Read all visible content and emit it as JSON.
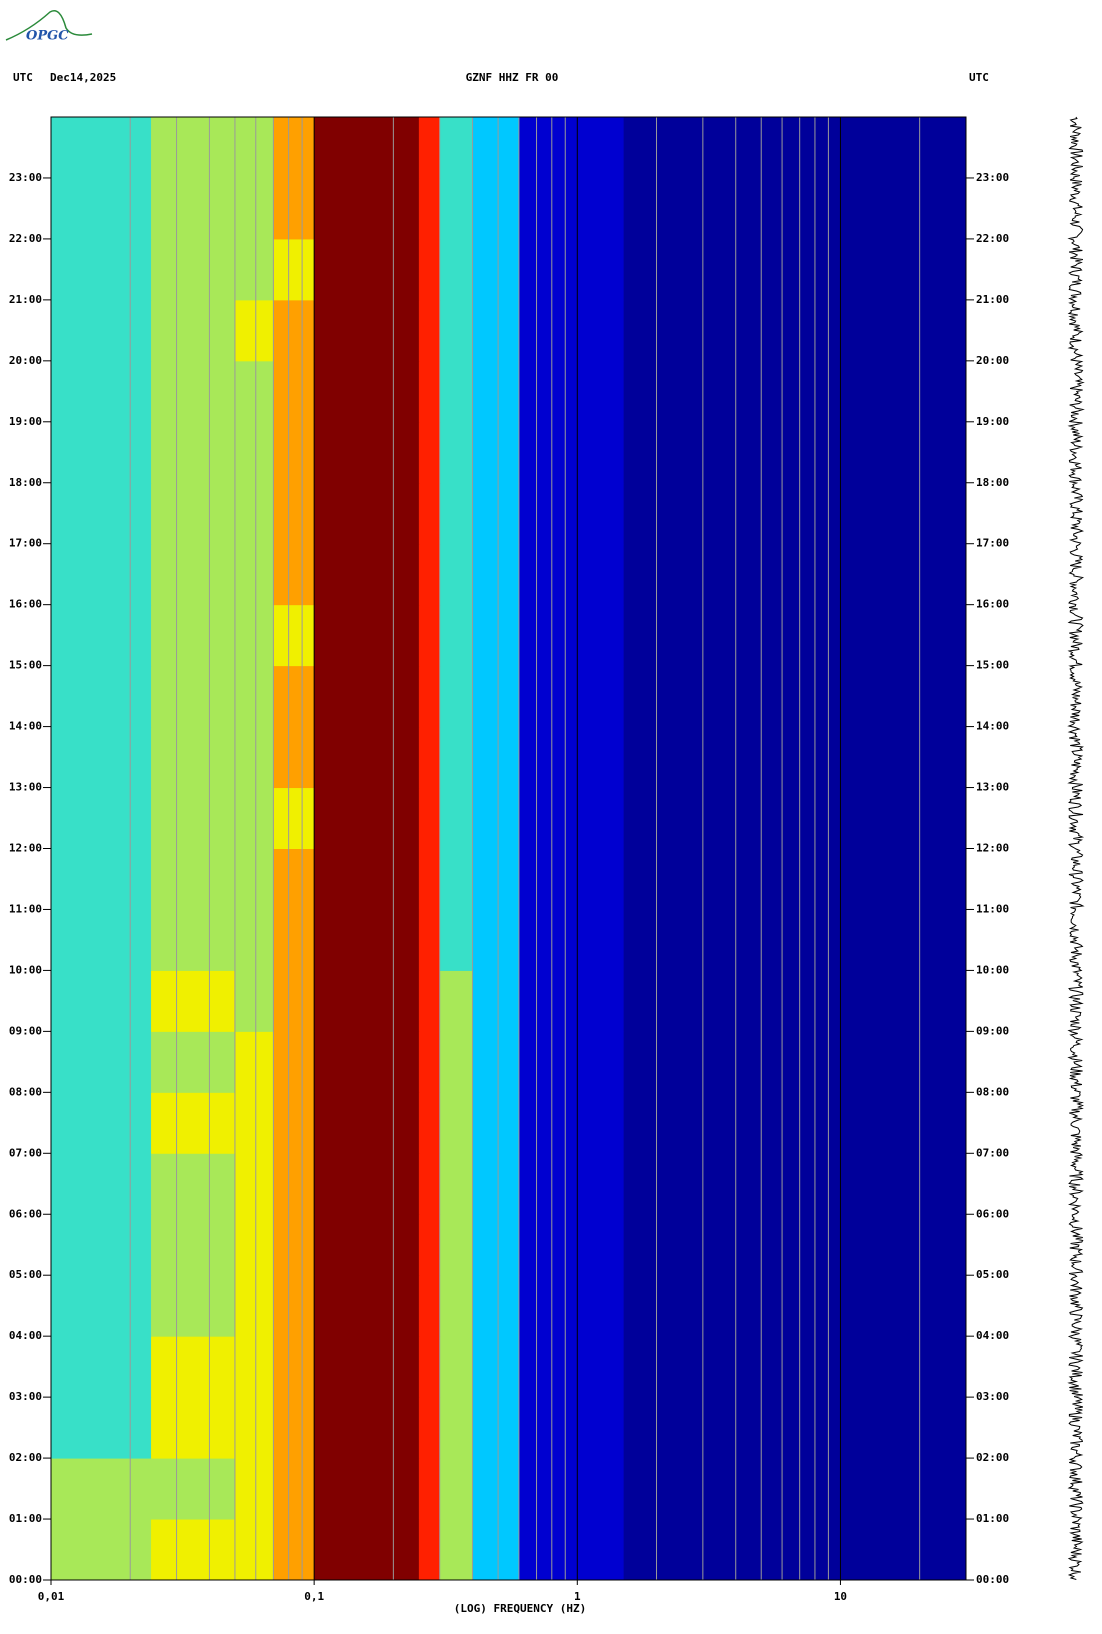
{
  "logo": "OPGC",
  "chart_data": {
    "type": "spectrogram",
    "header_left_zone": "UTC",
    "header_date": "Dec14,2025",
    "title": "GZNF HHZ FR 00",
    "header_right_zone": "UTC",
    "x_label": "(LOG) FREQUENCY (HZ)",
    "x_log": true,
    "xlim": [
      0.01,
      30
    ],
    "xticks": [
      {
        "value": 0.01,
        "label": "0,01"
      },
      {
        "value": 0.1,
        "label": "0,1"
      },
      1,
      10
    ],
    "xminor": [
      0.02,
      0.03,
      0.04,
      0.05,
      0.06,
      0.07,
      0.08,
      0.09,
      0.2,
      0.3,
      0.4,
      0.5,
      0.6,
      0.7,
      0.8,
      0.9,
      2,
      3,
      4,
      5,
      6,
      7,
      8,
      9,
      20
    ],
    "ylim": [
      0,
      24
    ],
    "yticks": [
      {
        "value": 0,
        "label": "00:00"
      },
      {
        "value": 1,
        "label": "01:00"
      },
      {
        "value": 2,
        "label": "02:00"
      },
      {
        "value": 3,
        "label": "03:00"
      },
      {
        "value": 4,
        "label": "04:00"
      },
      {
        "value": 5,
        "label": "05:00"
      },
      {
        "value": 6,
        "label": "06:00"
      },
      {
        "value": 7,
        "label": "07:00"
      },
      {
        "value": 8,
        "label": "08:00"
      },
      {
        "value": 9,
        "label": "09:00"
      },
      {
        "value": 10,
        "label": "10:00"
      },
      {
        "value": 11,
        "label": "11:00"
      },
      {
        "value": 12,
        "label": "12:00"
      },
      {
        "value": 13,
        "label": "13:00"
      },
      {
        "value": 14,
        "label": "14:00"
      },
      {
        "value": 15,
        "label": "15:00"
      },
      {
        "value": 16,
        "label": "16:00"
      },
      {
        "value": 17,
        "label": "17:00"
      },
      {
        "value": 18,
        "label": "18:00"
      },
      {
        "value": 19,
        "label": "19:00"
      },
      {
        "value": 20,
        "label": "20:00"
      },
      {
        "value": 21,
        "label": "21:00"
      },
      {
        "value": 22,
        "label": "22:00"
      },
      {
        "value": 23,
        "label": "23:00"
      }
    ],
    "bins": [
      0.01,
      0.024,
      0.05,
      0.07,
      0.1,
      0.2,
      0.25,
      0.3,
      0.4,
      0.6,
      1,
      1.5,
      30
    ],
    "y": [
      0,
      1,
      2,
      3,
      4,
      5,
      6,
      7,
      8,
      9,
      10,
      11,
      12,
      13,
      14,
      15,
      16,
      17,
      18,
      19,
      20,
      21,
      22,
      23
    ],
    "colormap": [
      "#00009a",
      "#0000d0",
      "#1e5aff",
      "#00c8ff",
      "#38e0c8",
      "#a8e858",
      "#f0f000",
      "#ffa000",
      "#ff2000",
      "#800000"
    ],
    "z": [
      [
        5,
        6,
        6,
        7,
        9,
        9,
        8,
        5,
        3,
        1,
        1,
        0
      ],
      [
        5,
        5,
        6,
        7,
        9,
        9,
        8,
        5,
        3,
        1,
        1,
        0
      ],
      [
        4,
        6,
        6,
        7,
        9,
        9,
        8,
        5,
        3,
        1,
        1,
        0
      ],
      [
        4,
        6,
        6,
        7,
        9,
        9,
        8,
        5,
        3,
        1,
        1,
        0
      ],
      [
        4,
        5,
        6,
        7,
        9,
        9,
        8,
        5,
        3,
        1,
        1,
        0
      ],
      [
        4,
        5,
        6,
        7,
        9,
        9,
        8,
        5,
        3,
        1,
        1,
        0
      ],
      [
        4,
        5,
        6,
        7,
        9,
        9,
        8,
        5,
        3,
        1,
        1,
        0
      ],
      [
        4,
        6,
        6,
        7,
        9,
        9,
        8,
        5,
        3,
        1,
        1,
        0
      ],
      [
        4,
        5,
        6,
        7,
        9,
        9,
        8,
        5,
        3,
        1,
        1,
        0
      ],
      [
        4,
        6,
        5,
        7,
        9,
        9,
        8,
        5,
        3,
        1,
        1,
        0
      ],
      [
        4,
        5,
        5,
        7,
        9,
        9,
        8,
        4,
        3,
        1,
        1,
        0
      ],
      [
        4,
        5,
        5,
        7,
        9,
        9,
        8,
        4,
        3,
        1,
        1,
        0
      ],
      [
        4,
        5,
        5,
        6,
        9,
        9,
        8,
        4,
        3,
        1,
        1,
        0
      ],
      [
        4,
        5,
        5,
        7,
        9,
        9,
        8,
        4,
        3,
        1,
        1,
        0
      ],
      [
        4,
        5,
        5,
        7,
        9,
        9,
        8,
        4,
        3,
        1,
        1,
        0
      ],
      [
        4,
        5,
        5,
        6,
        9,
        9,
        8,
        4,
        3,
        1,
        1,
        0
      ],
      [
        4,
        5,
        5,
        7,
        9,
        9,
        8,
        4,
        3,
        1,
        1,
        0
      ],
      [
        4,
        5,
        5,
        7,
        9,
        9,
        8,
        4,
        3,
        1,
        1,
        0
      ],
      [
        4,
        5,
        5,
        7,
        9,
        9,
        8,
        4,
        3,
        1,
        1,
        0
      ],
      [
        4,
        5,
        5,
        7,
        9,
        9,
        8,
        4,
        3,
        1,
        1,
        0
      ],
      [
        4,
        5,
        6,
        7,
        9,
        9,
        8,
        4,
        3,
        1,
        1,
        0
      ],
      [
        4,
        5,
        5,
        6,
        9,
        9,
        8,
        4,
        3,
        1,
        1,
        0
      ],
      [
        4,
        5,
        5,
        7,
        9,
        9,
        8,
        4,
        3,
        1,
        1,
        0
      ],
      [
        4,
        5,
        5,
        7,
        9,
        9,
        8,
        4,
        3,
        1,
        1,
        0
      ]
    ]
  }
}
